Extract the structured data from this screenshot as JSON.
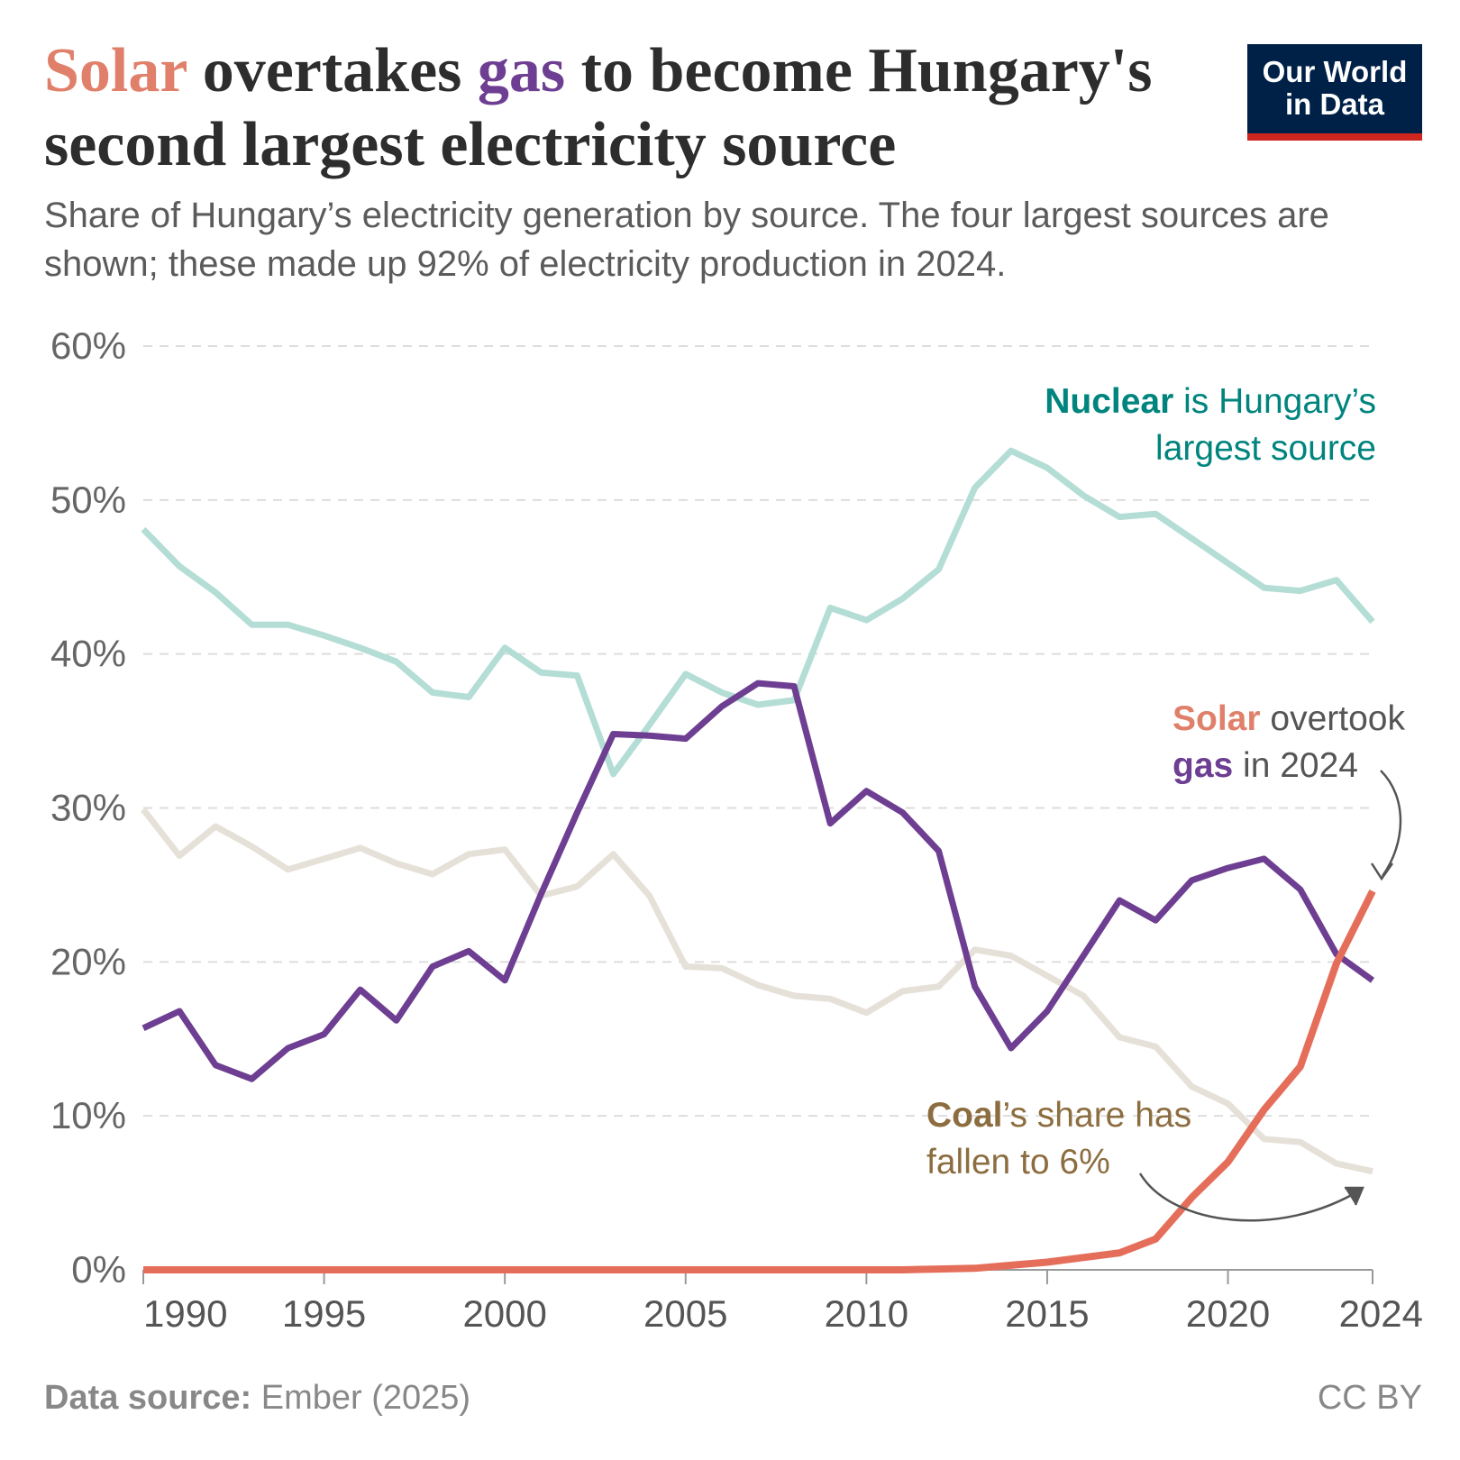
{
  "title": {
    "part1": "Solar",
    "part2": " overtakes ",
    "part3": "gas",
    "part4": " to become Hungary's second largest electricity source"
  },
  "subtitle": "Share of Hungary’s electricity generation by source. The four largest sources are shown; these made up 92% of electricity production in 2024.",
  "logo": {
    "line1": "Our World",
    "line2": "in Data"
  },
  "annotations": {
    "nuclear": {
      "bold": "Nuclear",
      "rest": " is Hungary’s",
      "line2": "largest source"
    },
    "solar": {
      "bold": "Solar",
      "rest": " overtook",
      "bold2": "gas",
      "rest2": " in 2024"
    },
    "coal": {
      "bold": "Coal",
      "rest": "’s share has",
      "line2": "fallen to 6%"
    }
  },
  "footer": {
    "source_label": "Data source:",
    "source": " Ember (2025)",
    "license": "CC BY"
  },
  "colors": {
    "nuclear": "#b3ddd5",
    "gas": "#6d3e91",
    "solar": "#e56e5a",
    "coal": "#e6e1d8",
    "nuclear_text": "#00847e",
    "coal_text": "#8c6d3f",
    "logo_bg": "#002147",
    "logo_bar": "#ce261e"
  },
  "chart_data": {
    "type": "line",
    "x": [
      1990,
      1991,
      1992,
      1993,
      1994,
      1995,
      1996,
      1997,
      1998,
      1999,
      2000,
      2001,
      2002,
      2003,
      2004,
      2005,
      2006,
      2007,
      2008,
      2009,
      2010,
      2011,
      2012,
      2013,
      2014,
      2015,
      2016,
      2017,
      2018,
      2019,
      2020,
      2021,
      2022,
      2023,
      2024
    ],
    "ylim": [
      0,
      60
    ],
    "yticks": [
      0,
      10,
      20,
      30,
      40,
      50,
      60
    ],
    "ytick_labels": [
      "0%",
      "10%",
      "20%",
      "30%",
      "40%",
      "50%",
      "60%"
    ],
    "xticks": [
      1990,
      1995,
      2000,
      2005,
      2010,
      2015,
      2020,
      2024
    ],
    "xtick_labels": [
      "1990",
      "1995",
      "2000",
      "2005",
      "2010",
      "2015",
      "2020",
      "2024"
    ],
    "grid": "horizontal dashed",
    "series": [
      {
        "key": "coal",
        "values": [
          29.9,
          26.9,
          28.8,
          27.5,
          26.0,
          26.7,
          27.4,
          26.4,
          25.7,
          27.0,
          27.3,
          24.3,
          24.9,
          27.0,
          24.3,
          19.7,
          19.6,
          18.5,
          17.8,
          17.6,
          16.7,
          18.1,
          18.4,
          20.8,
          20.4,
          19.1,
          17.8,
          15.1,
          14.5,
          11.9,
          10.8,
          8.5,
          8.3,
          6.9,
          6.4
        ]
      },
      {
        "key": "nuclear",
        "values": [
          48.1,
          45.7,
          44.0,
          41.9,
          41.9,
          41.2,
          40.4,
          39.5,
          37.5,
          37.2,
          40.4,
          38.8,
          38.6,
          32.2,
          35.4,
          38.7,
          37.5,
          36.7,
          37.0,
          43.0,
          42.2,
          43.6,
          45.5,
          50.8,
          53.2,
          52.1,
          50.3,
          48.9,
          49.1,
          47.5,
          45.9,
          44.3,
          44.1,
          44.8,
          42.1
        ]
      },
      {
        "key": "gas",
        "values": [
          15.7,
          16.8,
          13.3,
          12.4,
          14.4,
          15.3,
          18.2,
          16.2,
          19.7,
          20.7,
          18.8,
          24.4,
          29.7,
          34.8,
          34.7,
          34.5,
          36.6,
          38.1,
          37.9,
          29.0,
          31.1,
          29.7,
          27.2,
          18.4,
          14.4,
          16.8,
          20.4,
          24.0,
          22.7,
          25.3,
          26.1,
          26.7,
          24.7,
          20.5,
          18.8
        ]
      },
      {
        "key": "solar",
        "values": [
          0,
          0,
          0,
          0,
          0,
          0,
          0,
          0,
          0,
          0,
          0,
          0,
          0,
          0,
          0,
          0,
          0,
          0,
          0,
          0,
          0,
          0,
          0.05,
          0.1,
          0.3,
          0.5,
          0.8,
          1.1,
          2.0,
          4.7,
          7.0,
          10.4,
          13.2,
          19.9,
          24.6
        ]
      }
    ]
  }
}
